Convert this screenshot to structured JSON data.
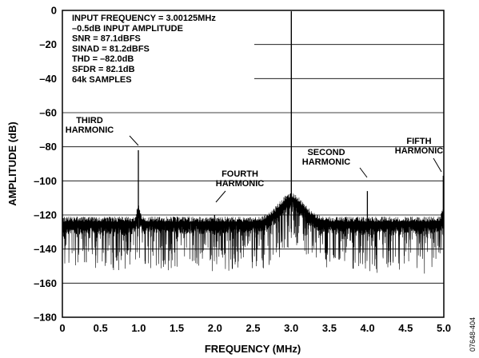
{
  "chart_data": {
    "type": "line",
    "xlabel": "FREQUENCY (MHz)",
    "ylabel": "AMPLITUDE (dB)",
    "xlim": [
      0,
      5
    ],
    "ylim": [
      -180,
      0
    ],
    "x_ticks": [
      "0",
      "0.5",
      "1.0",
      "1.5",
      "2.0",
      "2.5",
      "3.0",
      "3.5",
      "4.0",
      "4.5",
      "5.0"
    ],
    "y_ticks": [
      "0",
      "–20",
      "–40",
      "–60",
      "–80",
      "–100",
      "–120",
      "–140",
      "–160",
      "–180"
    ],
    "grid": "horizontal",
    "info_lines": [
      "INPUT FREQUENCY = 3.00125MHz",
      "–0.5dB INPUT AMPLITUDE",
      "SNR = 87.1dBFS",
      "SINAD = 81.2dBFS",
      "THD = –82.0dB",
      "SFDR = 82.1dB",
      "64k SAMPLES"
    ],
    "noise_floor_db": -128,
    "noise_spread_db": [
      -160,
      -118
    ],
    "fundamental": {
      "x": 3.00125,
      "y": -0.5
    },
    "harmonics": [
      {
        "label": [
          "THIRD",
          "HARMONIC"
        ],
        "x": 0.996,
        "y": -82
      },
      {
        "label": [
          "FOURTH",
          "HARMONIC"
        ],
        "x": 1.995,
        "y": -120
      },
      {
        "label": [
          "SECOND",
          "HARMONIC"
        ],
        "x": 3.998,
        "y": -106
      },
      {
        "label": [
          "FIFTH",
          "HARMONIC"
        ],
        "x": 4.993,
        "y": -97
      }
    ],
    "figure_id": "07648-404"
  }
}
